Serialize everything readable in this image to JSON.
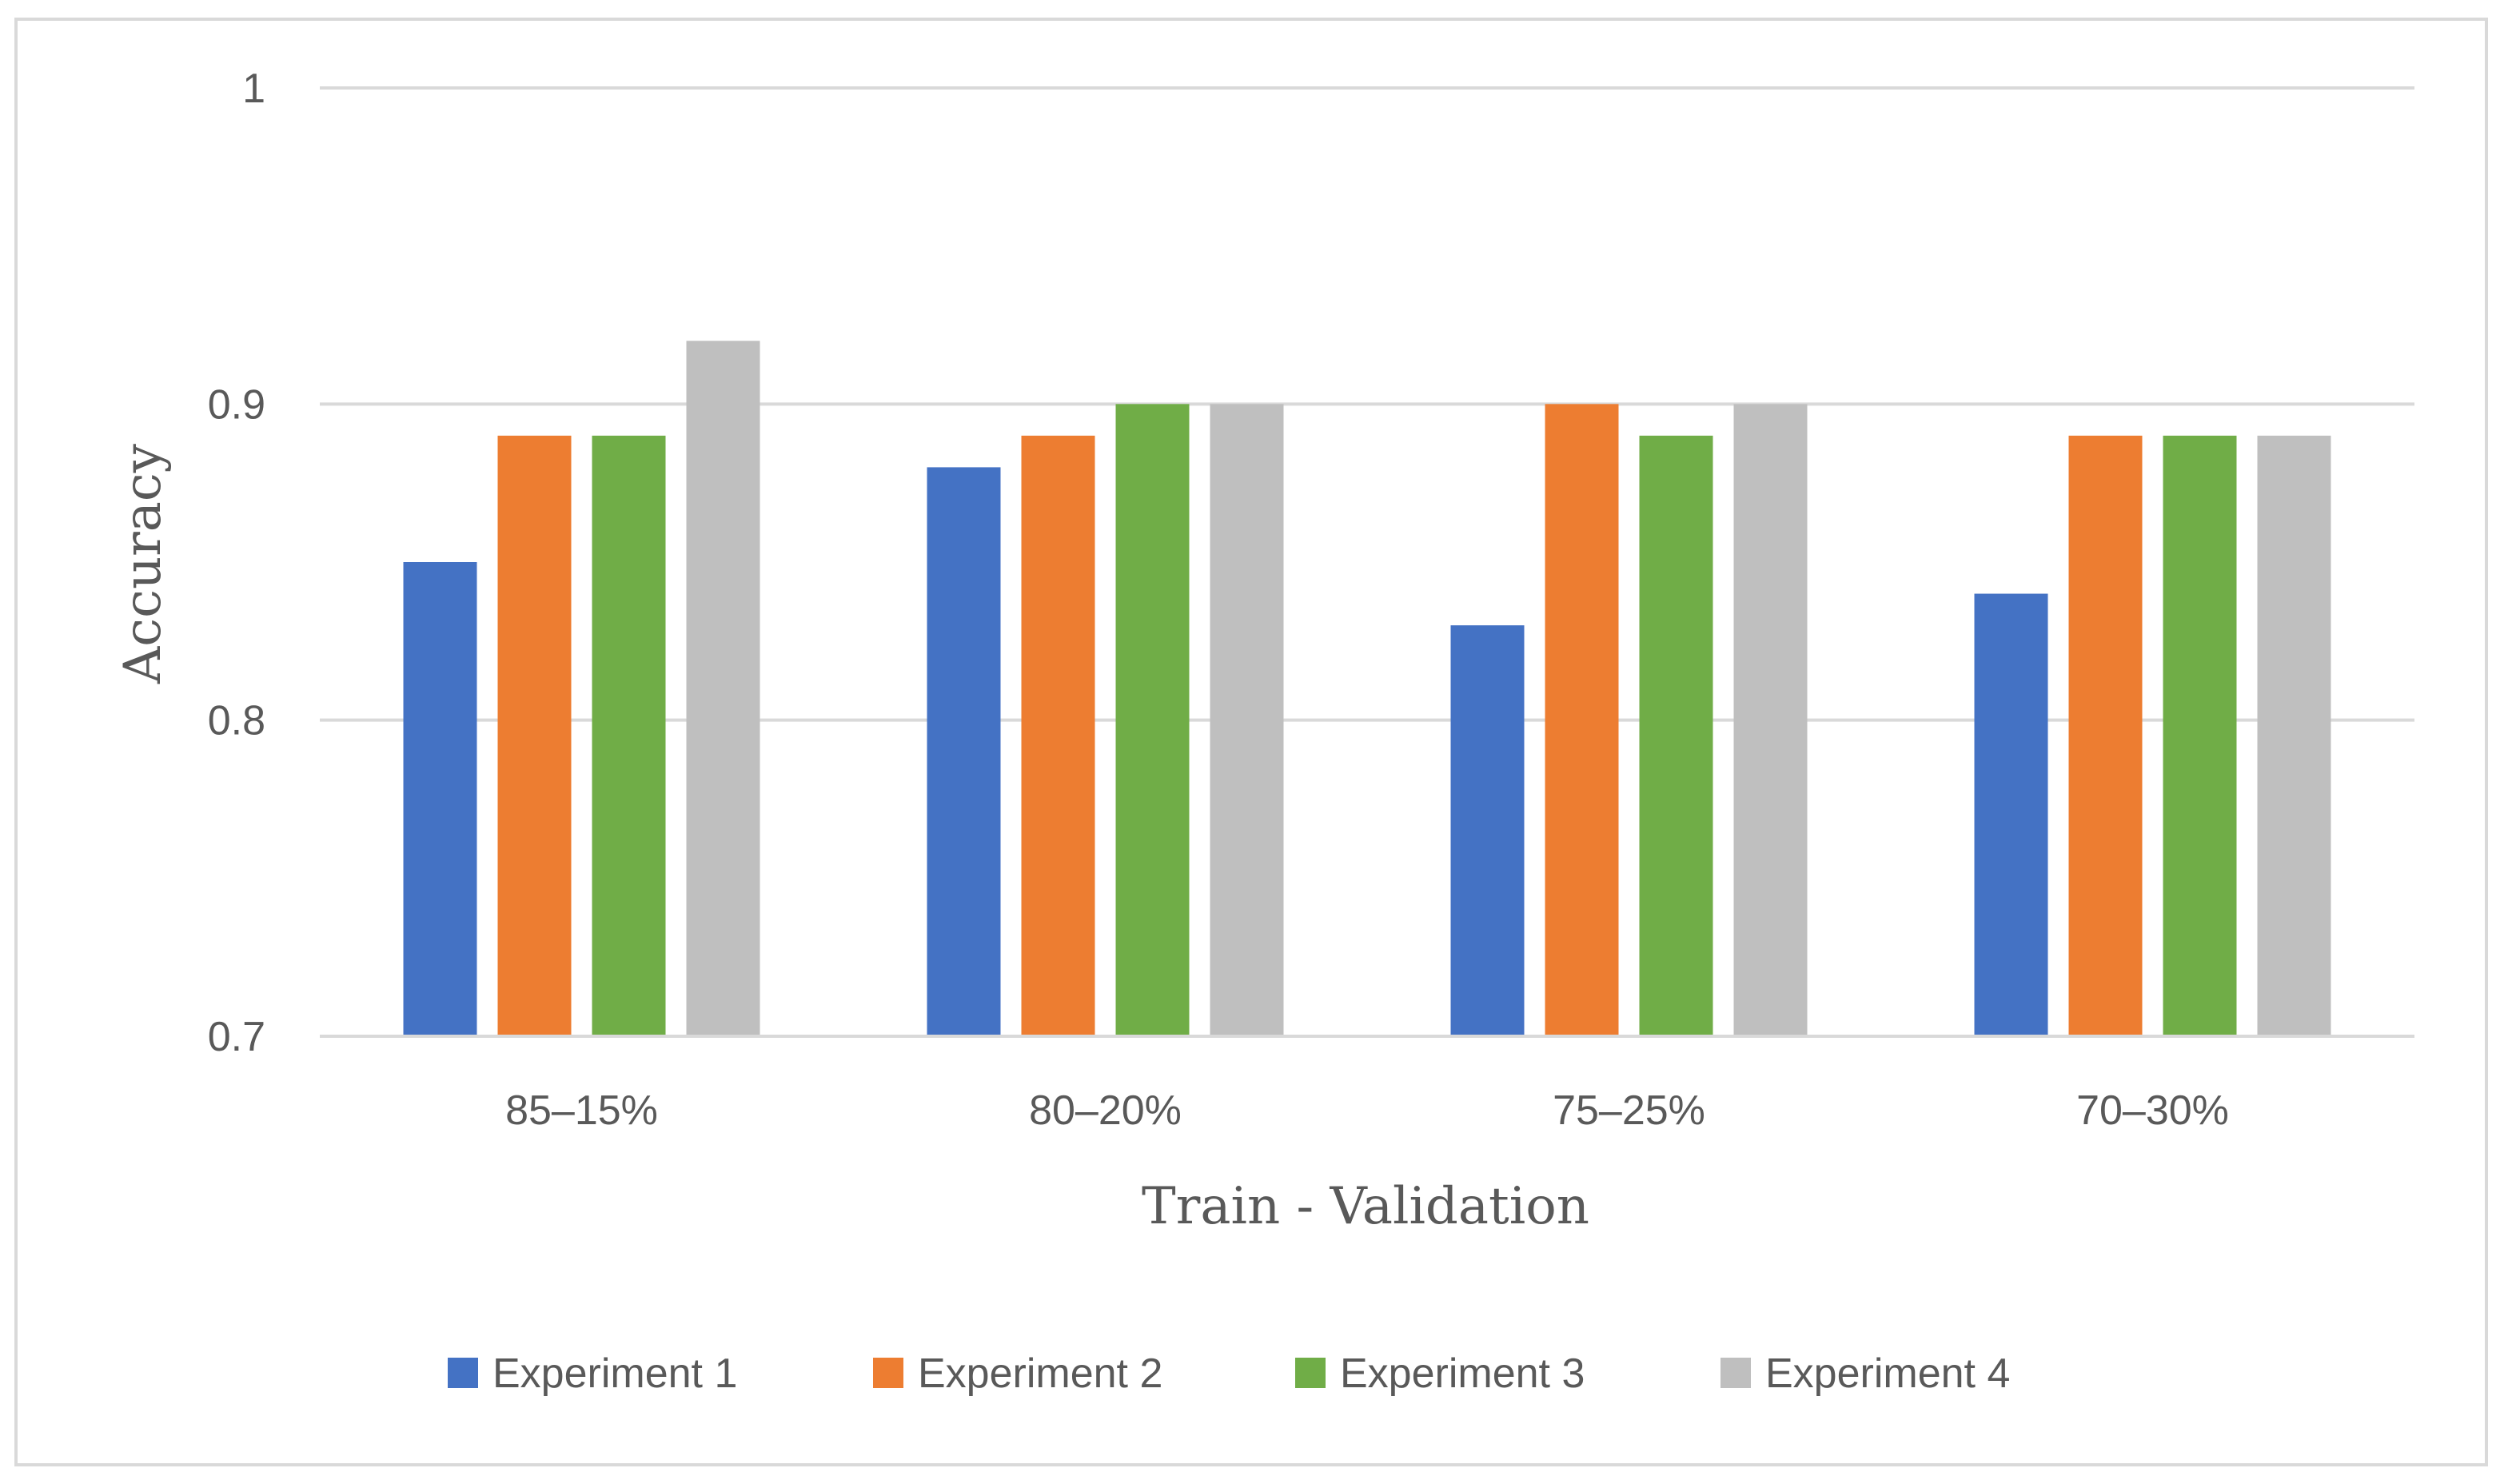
{
  "chart_data": {
    "type": "bar",
    "title": "",
    "xlabel": "Train - Validation",
    "ylabel": "Accuracy",
    "categories": [
      "85–15%",
      "80–20%",
      "75–25%",
      "70–30%"
    ],
    "series": [
      {
        "name": "Experiment 1",
        "color": "#4472C4",
        "values": [
          0.85,
          0.88,
          0.83,
          0.84
        ]
      },
      {
        "name": "Experiment 2",
        "color": "#ED7D31",
        "values": [
          0.89,
          0.89,
          0.9,
          0.89
        ]
      },
      {
        "name": "Experiment 3",
        "color": "#70AD47",
        "values": [
          0.89,
          0.9,
          0.89,
          0.89
        ]
      },
      {
        "name": "Experiment 4",
        "color": "#BFBFBF",
        "values": [
          0.92,
          0.9,
          0.9,
          0.89
        ]
      }
    ],
    "ylim": [
      0.7,
      1
    ],
    "yticks": [
      0.7,
      0.8,
      0.9,
      1
    ],
    "ytick_labels": [
      "0.7",
      "0.8",
      "0.9",
      "1"
    ],
    "grid": true,
    "legend_position": "bottom"
  }
}
